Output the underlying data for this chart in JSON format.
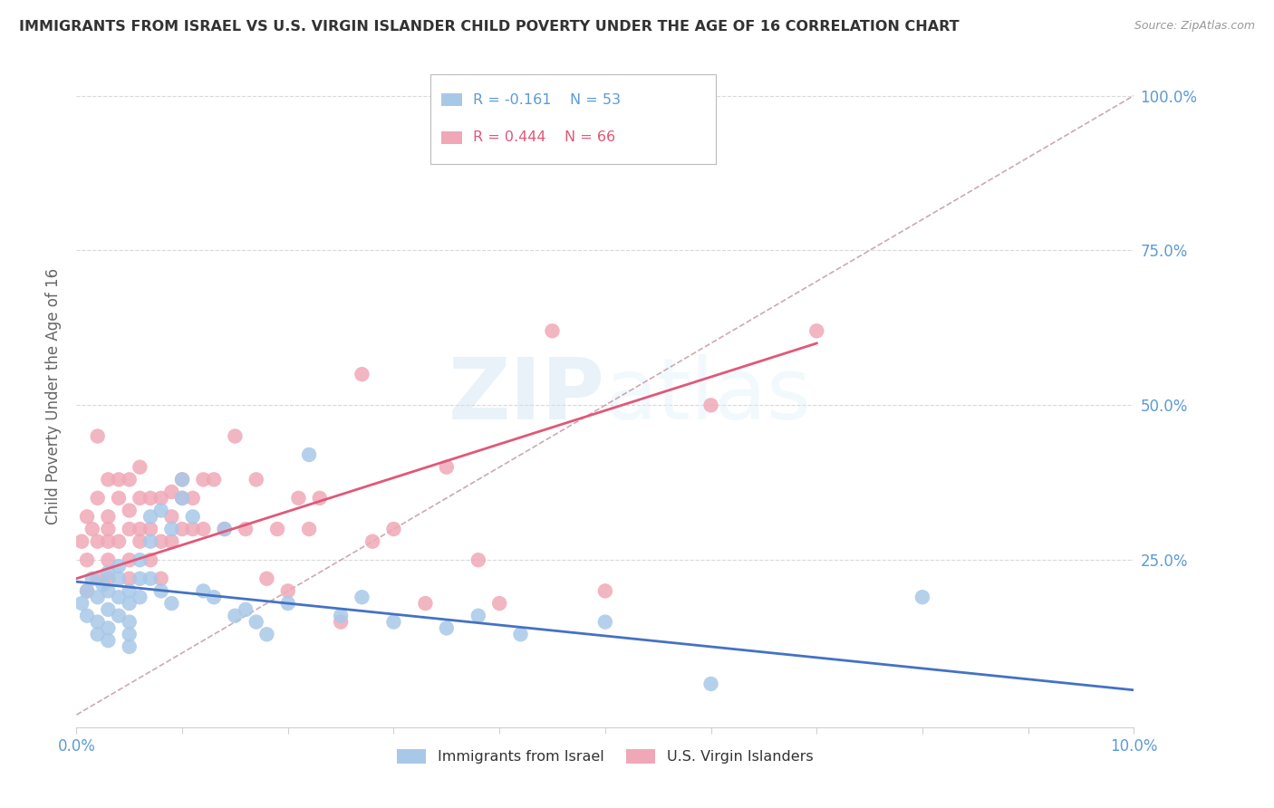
{
  "title": "IMMIGRANTS FROM ISRAEL VS U.S. VIRGIN ISLANDER CHILD POVERTY UNDER THE AGE OF 16 CORRELATION CHART",
  "source": "Source: ZipAtlas.com",
  "ylabel": "Child Poverty Under the Age of 16",
  "watermark_zip": "ZIP",
  "watermark_atlas": "atlas",
  "background": "#ffffff",
  "grid_color": "#d0d0d0",
  "tick_label_color": "#5b9bd5",
  "title_color": "#333333",
  "israel_scatter_color": "#a8c8e8",
  "virgin_scatter_color": "#f0a8b8",
  "israel_line_color": "#4472c4",
  "virgin_line_color": "#e05878",
  "diagonal_line_color": "#c8a0a8",
  "israel_R": -0.161,
  "israel_N": 53,
  "virgin_R": 0.444,
  "virgin_N": 66,
  "x_min": 0.0,
  "x_max": 0.1,
  "y_min": -0.02,
  "y_max": 1.05,
  "legend_israel_label": "Immigrants from Israel",
  "legend_virgin_label": "U.S. Virgin Islanders",
  "israel_scatter_x": [
    0.0005,
    0.001,
    0.001,
    0.0015,
    0.002,
    0.002,
    0.002,
    0.0025,
    0.003,
    0.003,
    0.003,
    0.003,
    0.003,
    0.004,
    0.004,
    0.004,
    0.004,
    0.005,
    0.005,
    0.005,
    0.005,
    0.005,
    0.006,
    0.006,
    0.006,
    0.007,
    0.007,
    0.007,
    0.008,
    0.008,
    0.009,
    0.009,
    0.01,
    0.01,
    0.011,
    0.012,
    0.013,
    0.014,
    0.015,
    0.016,
    0.017,
    0.018,
    0.02,
    0.022,
    0.025,
    0.027,
    0.03,
    0.035,
    0.038,
    0.042,
    0.05,
    0.06,
    0.08
  ],
  "israel_scatter_y": [
    0.18,
    0.2,
    0.16,
    0.22,
    0.19,
    0.15,
    0.13,
    0.21,
    0.23,
    0.2,
    0.17,
    0.14,
    0.12,
    0.22,
    0.19,
    0.16,
    0.24,
    0.2,
    0.18,
    0.15,
    0.13,
    0.11,
    0.25,
    0.22,
    0.19,
    0.32,
    0.28,
    0.22,
    0.33,
    0.2,
    0.3,
    0.18,
    0.35,
    0.38,
    0.32,
    0.2,
    0.19,
    0.3,
    0.16,
    0.17,
    0.15,
    0.13,
    0.18,
    0.42,
    0.16,
    0.19,
    0.15,
    0.14,
    0.16,
    0.13,
    0.15,
    0.05,
    0.19
  ],
  "virgin_scatter_x": [
    0.0005,
    0.001,
    0.001,
    0.001,
    0.0015,
    0.002,
    0.002,
    0.002,
    0.002,
    0.003,
    0.003,
    0.003,
    0.003,
    0.003,
    0.003,
    0.004,
    0.004,
    0.004,
    0.005,
    0.005,
    0.005,
    0.005,
    0.005,
    0.006,
    0.006,
    0.006,
    0.006,
    0.007,
    0.007,
    0.007,
    0.008,
    0.008,
    0.008,
    0.009,
    0.009,
    0.009,
    0.01,
    0.01,
    0.01,
    0.011,
    0.011,
    0.012,
    0.012,
    0.013,
    0.014,
    0.015,
    0.016,
    0.017,
    0.018,
    0.019,
    0.02,
    0.021,
    0.022,
    0.023,
    0.025,
    0.027,
    0.028,
    0.03,
    0.033,
    0.035,
    0.038,
    0.04,
    0.045,
    0.05,
    0.06,
    0.07
  ],
  "virgin_scatter_y": [
    0.28,
    0.32,
    0.25,
    0.2,
    0.3,
    0.35,
    0.28,
    0.22,
    0.45,
    0.32,
    0.28,
    0.38,
    0.25,
    0.22,
    0.3,
    0.35,
    0.28,
    0.38,
    0.33,
    0.3,
    0.25,
    0.38,
    0.22,
    0.35,
    0.3,
    0.28,
    0.4,
    0.35,
    0.3,
    0.25,
    0.35,
    0.28,
    0.22,
    0.36,
    0.32,
    0.28,
    0.35,
    0.3,
    0.38,
    0.35,
    0.3,
    0.38,
    0.3,
    0.38,
    0.3,
    0.45,
    0.3,
    0.38,
    0.22,
    0.3,
    0.2,
    0.35,
    0.3,
    0.35,
    0.15,
    0.55,
    0.28,
    0.3,
    0.18,
    0.4,
    0.25,
    0.18,
    0.62,
    0.2,
    0.5,
    0.62
  ],
  "israel_line_x0": 0.0,
  "israel_line_y0": 0.215,
  "israel_line_x1": 0.1,
  "israel_line_y1": 0.04,
  "virgin_line_x0": 0.0,
  "virgin_line_y0": 0.22,
  "virgin_line_x1": 0.07,
  "virgin_line_y1": 0.6
}
